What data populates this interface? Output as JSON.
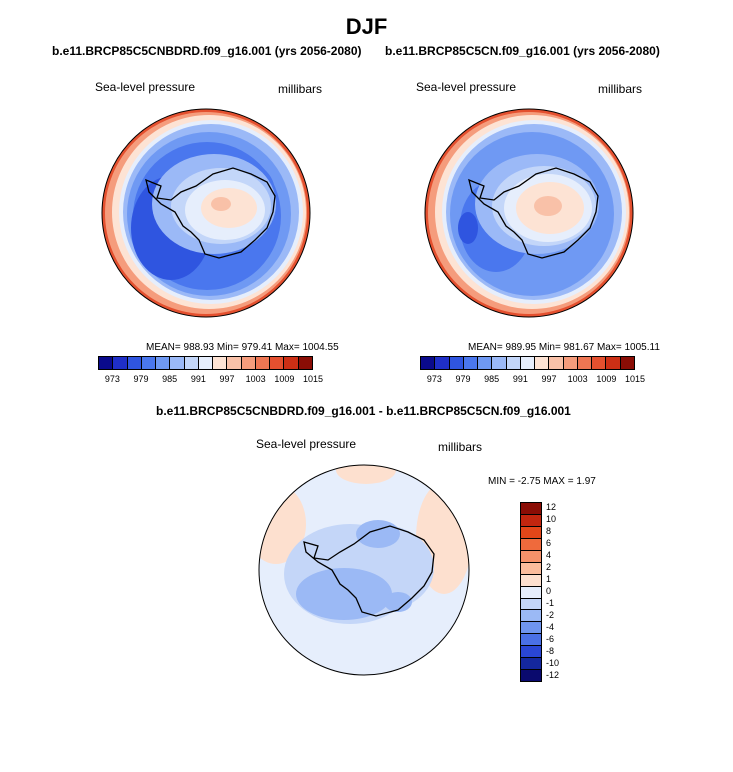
{
  "figure": {
    "title": "DJF"
  },
  "panels": [
    {
      "id": "left",
      "title": "b.e11.BRCP85C5CNBDRD.f09_g16.001 (yrs 2056-2080)",
      "variable": "Sea-level pressure",
      "units": "millibars",
      "stats": "MEAN= 988.93  Min= 979.41  Max= 1004.55"
    },
    {
      "id": "right",
      "title": "b.e11.BRCP85C5CN.f09_g16.001 (yrs 2056-2080)",
      "variable": "Sea-level pressure",
      "units": "millibars",
      "stats": "MEAN= 989.95  Min= 981.67  Max= 1005.11"
    },
    {
      "id": "diff",
      "title": "b.e11.BRCP85C5CNBDRD.f09_g16.001 - b.e11.BRCP85C5CN.f09_g16.001",
      "variable": "Sea-level pressure",
      "units": "millibars",
      "stats": "MIN =  -2.75 MAX =   1.97"
    }
  ],
  "colorbar_abs": {
    "tick_labels": [
      "973",
      "979",
      "985",
      "991",
      "997",
      "1003",
      "1009",
      "1015"
    ],
    "colors": [
      "#0a0a8c",
      "#1f2fc8",
      "#2f55e0",
      "#4a77ee",
      "#6f99f3",
      "#9bb9f7",
      "#c3d6f9",
      "#e6eefc",
      "#fde3d4",
      "#f9c1a8",
      "#f59c7c",
      "#ee7653",
      "#e4502f",
      "#cc2f15",
      "#8a0d05"
    ]
  },
  "colorbar_diff": {
    "tick_labels": [
      "12",
      "10",
      "8",
      "6",
      "4",
      "2",
      "1",
      "0",
      "-1",
      "-2",
      "-4",
      "-6",
      "-8",
      "-10",
      "-12"
    ],
    "colors": [
      "#8a0d05",
      "#c2260f",
      "#e34619",
      "#ef6a3c",
      "#f6926a",
      "#fbbc9c",
      "#fde0cf",
      "#e6eefc",
      "#c4d6f8",
      "#9bb9f5",
      "#6f95ef",
      "#4a70e6",
      "#2a46d4",
      "#14279e",
      "#0a0a6e"
    ]
  }
}
